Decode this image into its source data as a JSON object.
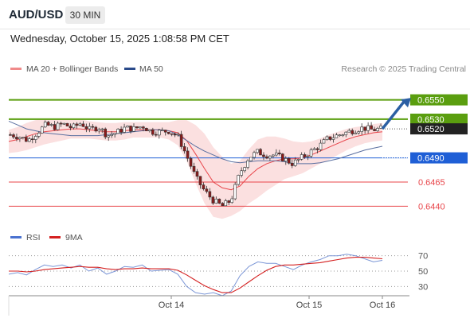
{
  "header": {
    "symbol": "AUD/USD",
    "timeframe": "30 MIN"
  },
  "datetime": "Wednesday, October 15, 2025 1:08:58 PM CET",
  "legend": {
    "ma20_label": "MA 20 + Bollinger Bands",
    "ma50_label": "MA 50",
    "rsi_label": "RSI",
    "rsi_ma_label": "9MA",
    "credit": "Research © 2025 Trading Central"
  },
  "colors": {
    "green": "#5a9e0f",
    "blue": "#1f5fd6",
    "red": "#e8454a",
    "candle": "#8b1a1a",
    "band": "#f9d6d6",
    "ma50": "#5a6fa0",
    "rsi": "#7b96d6",
    "arrow": "#2b5fa3"
  },
  "chart_data": [
    {
      "type": "candlestick",
      "ylim": [
        0.6428,
        0.6562
      ],
      "x_ticks": [
        "Oct 14",
        "Oct 15",
        "Oct 16"
      ],
      "levels": [
        {
          "value": 0.655,
          "label": "0.6550",
          "color": "green",
          "kind": "target"
        },
        {
          "value": 0.653,
          "label": "0.6530",
          "color": "green",
          "kind": "resistance"
        },
        {
          "value": 0.649,
          "label": "0.6490",
          "color": "blue",
          "kind": "pivot"
        },
        {
          "value": 0.6465,
          "label": "0.6465",
          "color": "red",
          "kind": "support"
        },
        {
          "value": 0.644,
          "label": "0.6440",
          "color": "red",
          "kind": "support"
        }
      ],
      "last_price": {
        "value": 0.652,
        "label": "0.6520"
      },
      "close_path": [
        0.6514,
        0.6512,
        0.6508,
        0.6516,
        0.6524,
        0.6522,
        0.6525,
        0.6521,
        0.6526,
        0.6519,
        0.6522,
        0.6513,
        0.6516,
        0.6521,
        0.652,
        0.6523,
        0.6517,
        0.6517,
        0.6518,
        0.6512,
        0.6492,
        0.647,
        0.6456,
        0.6446,
        0.644,
        0.6446,
        0.6474,
        0.649,
        0.6496,
        0.6493,
        0.6493,
        0.6489,
        0.6484,
        0.649,
        0.6496,
        0.6502,
        0.651,
        0.6513,
        0.6516,
        0.6519,
        0.6521,
        0.6519,
        0.652
      ],
      "series": [
        {
          "name": "MA 20",
          "values": [
            0.6507,
            0.6509,
            0.6512,
            0.6515,
            0.6517,
            0.6518,
            0.6519,
            0.652,
            0.652,
            0.6519,
            0.6518,
            0.6517,
            0.6517,
            0.6518,
            0.6519,
            0.6519,
            0.6519,
            0.6519,
            0.6518,
            0.6516,
            0.6508,
            0.6494,
            0.6479,
            0.6465,
            0.6459,
            0.6457,
            0.6461,
            0.6471,
            0.6479,
            0.6484,
            0.6487,
            0.6489,
            0.6489,
            0.649,
            0.6493,
            0.6497,
            0.6501,
            0.6505,
            0.6509,
            0.6512,
            0.6514,
            0.6516,
            0.6517
          ]
        },
        {
          "name": "MA 50",
          "values": [
            0.6528,
            0.6524,
            0.652,
            0.6518,
            0.6516,
            0.6515,
            0.6514,
            0.6513,
            0.6513,
            0.6513,
            0.6513,
            0.6514,
            0.6515,
            0.6516,
            0.6517,
            0.6518,
            0.6519,
            0.6519,
            0.6518,
            0.6514,
            0.6508,
            0.6502,
            0.6497,
            0.6493,
            0.6489,
            0.6486,
            0.6485,
            0.6486,
            0.6487,
            0.6487,
            0.6487,
            0.6486,
            0.6484,
            0.6484,
            0.6484,
            0.6485,
            0.6487,
            0.6489,
            0.6492,
            0.6495,
            0.6498,
            0.65,
            0.6502
          ]
        }
      ],
      "bollinger_width": [
        0.0012,
        0.0013,
        0.0014,
        0.0014,
        0.0013,
        0.0012,
        0.0011,
        0.001,
        0.001,
        0.0009,
        0.0009,
        0.0009,
        0.0009,
        0.0009,
        0.0008,
        0.0008,
        0.0008,
        0.0008,
        0.0009,
        0.0013,
        0.0021,
        0.003,
        0.0036,
        0.0036,
        0.0032,
        0.0027,
        0.0026,
        0.0028,
        0.003,
        0.0028,
        0.0025,
        0.0021,
        0.0018,
        0.0016,
        0.0014,
        0.0013,
        0.0013,
        0.0012,
        0.0011,
        0.001,
        0.0009,
        0.0009,
        0.0009
      ]
    },
    {
      "type": "line",
      "title": "RSI",
      "ylim": [
        20,
        80
      ],
      "y_ticks": [
        70,
        50,
        30
      ],
      "series": [
        {
          "name": "RSI",
          "values": [
            46,
            48,
            45,
            52,
            58,
            56,
            58,
            54,
            58,
            50,
            54,
            46,
            50,
            56,
            55,
            58,
            50,
            51,
            52,
            46,
            30,
            22,
            20,
            22,
            18,
            24,
            44,
            56,
            62,
            60,
            60,
            56,
            52,
            58,
            62,
            65,
            70,
            70,
            72,
            70,
            66,
            62,
            64
          ]
        },
        {
          "name": "9MA",
          "values": [
            50,
            50,
            49,
            50,
            52,
            53,
            54,
            55,
            56,
            55,
            55,
            53,
            52,
            53,
            53,
            54,
            53,
            53,
            53,
            51,
            45,
            38,
            31,
            26,
            22,
            22,
            28,
            36,
            44,
            51,
            56,
            58,
            58,
            59,
            60,
            61,
            63,
            65,
            67,
            68,
            68,
            67,
            66
          ]
        }
      ]
    }
  ]
}
